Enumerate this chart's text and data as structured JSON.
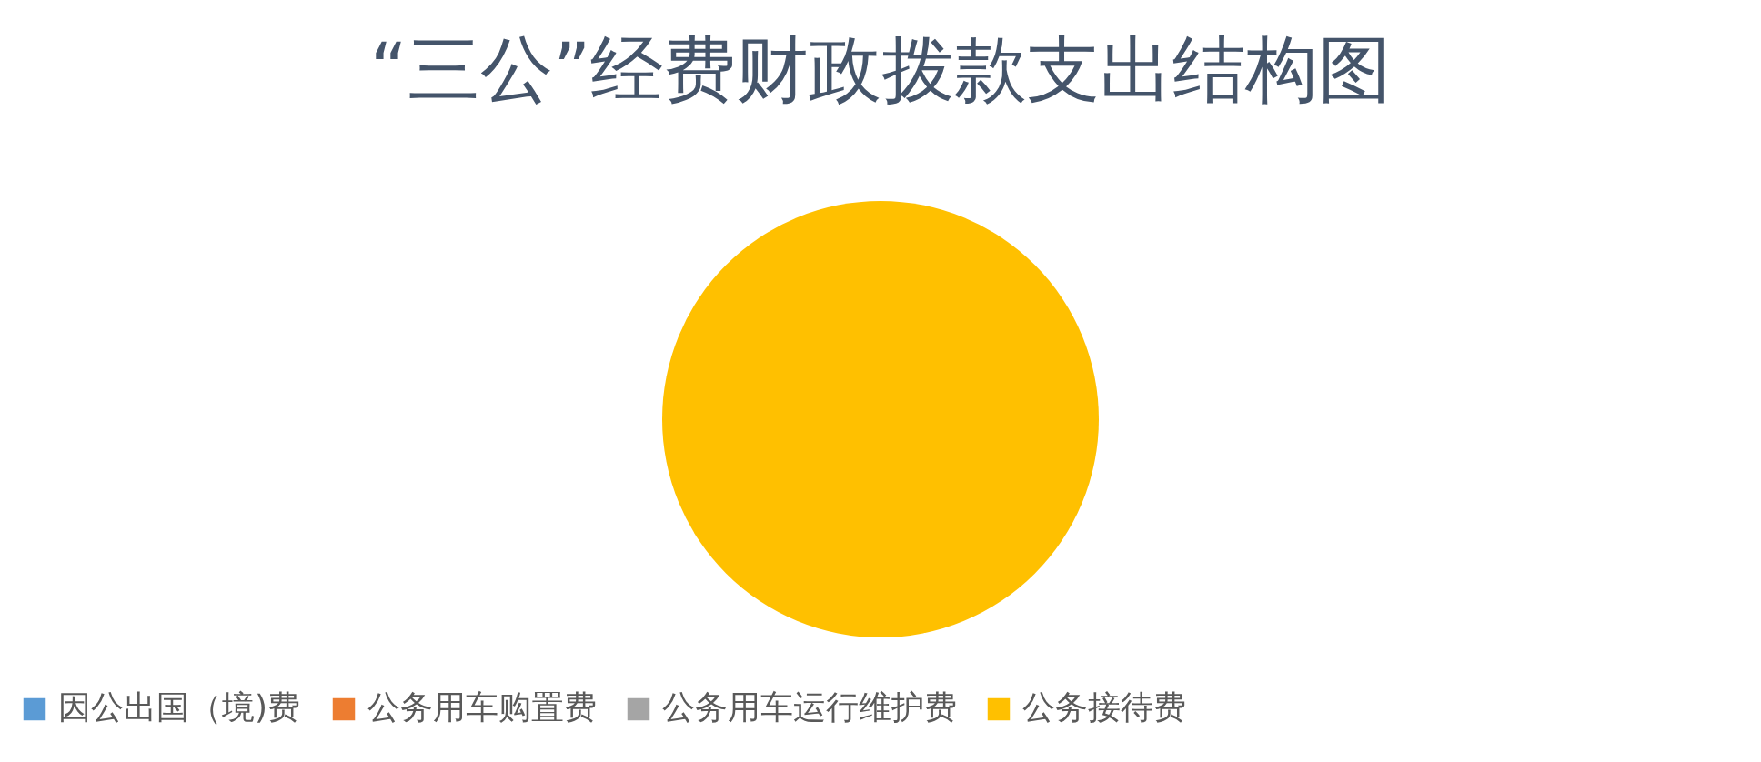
{
  "chart_data": {
    "type": "pie",
    "title": "“三公”经费财政拨款支出结构图",
    "categories": [
      "因公出国（境)费",
      "公务用车购置费",
      "公务用车运行维护费",
      "公务接待费"
    ],
    "values": [
      0,
      0,
      0,
      100
    ],
    "colors": [
      "#5b9bd5",
      "#ed7d31",
      "#a5a5a5",
      "#ffc000"
    ],
    "legend": "bottom"
  }
}
